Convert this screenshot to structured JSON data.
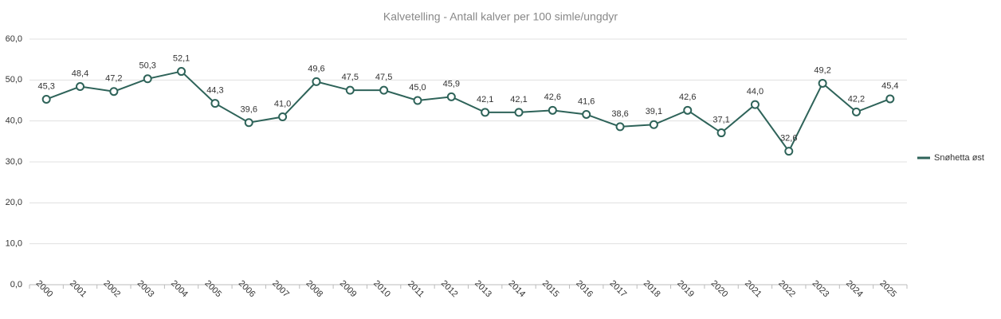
{
  "chart_data": {
    "type": "line",
    "title": "Kalvetelling - Antall kalver per 100 simle/ungdyr",
    "categories": [
      "2000",
      "2001",
      "2002",
      "2003",
      "2004",
      "2005",
      "2006",
      "2007",
      "2008",
      "2009",
      "2010",
      "2011",
      "2012",
      "2013",
      "2014",
      "2015",
      "2016",
      "2017",
      "2018",
      "2019",
      "2020",
      "2021",
      "2022",
      "2023",
      "2024",
      "2025"
    ],
    "series": [
      {
        "name": "Snøhetta øst",
        "color": "#2e6359",
        "values": [
          45.3,
          48.4,
          47.2,
          50.3,
          52.1,
          44.3,
          39.6,
          41.0,
          49.6,
          47.5,
          47.5,
          45.0,
          45.9,
          42.1,
          42.1,
          42.6,
          41.6,
          38.6,
          39.1,
          42.6,
          37.1,
          44.0,
          32.6,
          49.2,
          42.2,
          45.4
        ],
        "value_labels": [
          "45,3",
          "48,4",
          "47,2",
          "50,3",
          "52,1",
          "44,3",
          "39,6",
          "41,0",
          "49,6",
          "47,5",
          "47,5",
          "45,0",
          "45,9",
          "42,1",
          "42,1",
          "42,6",
          "41,6",
          "38,6",
          "39,1",
          "42,6",
          "37,1",
          "44,0",
          "32,6",
          "49,2",
          "42,2",
          "45,4"
        ]
      }
    ],
    "ylim": [
      0,
      60
    ],
    "yticks": [
      {
        "value": 0,
        "label": "0,0"
      },
      {
        "value": 10,
        "label": "10,0"
      },
      {
        "value": 20,
        "label": "20,0"
      },
      {
        "value": 30,
        "label": "30,0"
      },
      {
        "value": 40,
        "label": "40,0"
      },
      {
        "value": 50,
        "label": "50,0"
      },
      {
        "value": 60,
        "label": "60,0"
      }
    ],
    "grid": true,
    "legend": "right"
  }
}
